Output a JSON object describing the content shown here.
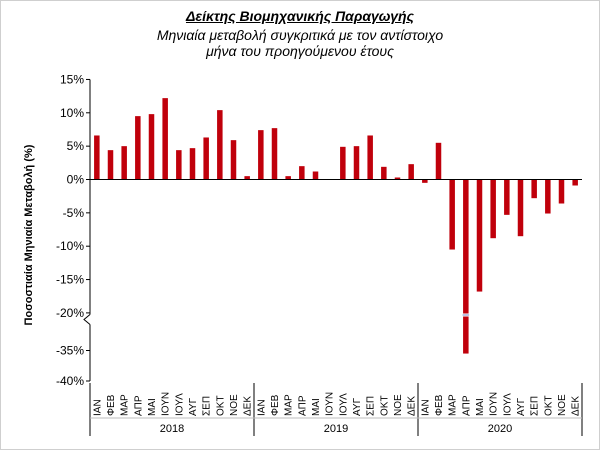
{
  "chart_data": {
    "type": "bar",
    "title": "Δείκτης Βιομηχανικής Παραγωγής",
    "subtitle": "Μηνιαία μεταβολή συγκριτικά με τον αντίστοιχο μήνα του προηγούμενου έτους",
    "ylabel": "Ποσοστιαία Μηνιαία Μεταβολή (%)",
    "xlabel": "",
    "y_ticks": [
      "15%",
      "10%",
      "5%",
      "0%",
      "-5%",
      "-10%",
      "-15%",
      "-20%",
      "-35%",
      "-40%"
    ],
    "axis_break": "-20% / -35%",
    "ylim": [
      -40,
      15
    ],
    "years": [
      "2018",
      "2019",
      "2020"
    ],
    "months": [
      "ΙΑΝ",
      "ΦΕΒ",
      "ΜΑΡ",
      "ΑΠΡ",
      "ΜΑΙ",
      "ΙΟΥΝ",
      "ΙΟΥΛ",
      "ΑΥΓ",
      "ΣΕΠ",
      "ΟΚΤ",
      "ΝΟΕ",
      "ΔΕΚ"
    ],
    "categories": [
      "ΙΑΝ",
      "ΦΕΒ",
      "ΜΑΡ",
      "ΑΠΡ",
      "ΜΑΙ",
      "ΙΟΥΝ",
      "ΙΟΥΛ",
      "ΑΥΓ",
      "ΣΕΠ",
      "ΟΚΤ",
      "ΝΟΕ",
      "ΔΕΚ",
      "ΙΑΝ",
      "ΦΕΒ",
      "ΜΑΡ",
      "ΑΠΡ",
      "ΜΑΙ",
      "ΙΟΥΝ",
      "ΙΟΥΛ",
      "ΑΥΓ",
      "ΣΕΠ",
      "ΟΚΤ",
      "ΝΟΕ",
      "ΔΕΚ",
      "ΙΑΝ",
      "ΦΕΒ",
      "ΜΑΡ",
      "ΑΠΡ",
      "ΜΑΙ",
      "ΙΟΥΝ",
      "ΙΟΥΛ",
      "ΑΥΓ",
      "ΣΕΠ",
      "ΟΚΤ",
      "ΝΟΕ",
      "ΔΕΚ"
    ],
    "values": [
      6.6,
      4.4,
      5.0,
      9.5,
      9.8,
      12.2,
      4.4,
      4.7,
      6.3,
      10.4,
      5.9,
      0.5,
      7.4,
      7.7,
      0.5,
      2.0,
      1.2,
      0.0,
      4.9,
      5.0,
      6.6,
      1.9,
      0.3,
      2.3,
      -0.5,
      5.5,
      -10.5,
      -35.5,
      -16.8,
      -8.8,
      -5.3,
      -8.5,
      -2.8,
      -5.1,
      -3.6,
      -0.9
    ],
    "bar_color": "#c0000b",
    "grid": false,
    "legend": "none"
  }
}
